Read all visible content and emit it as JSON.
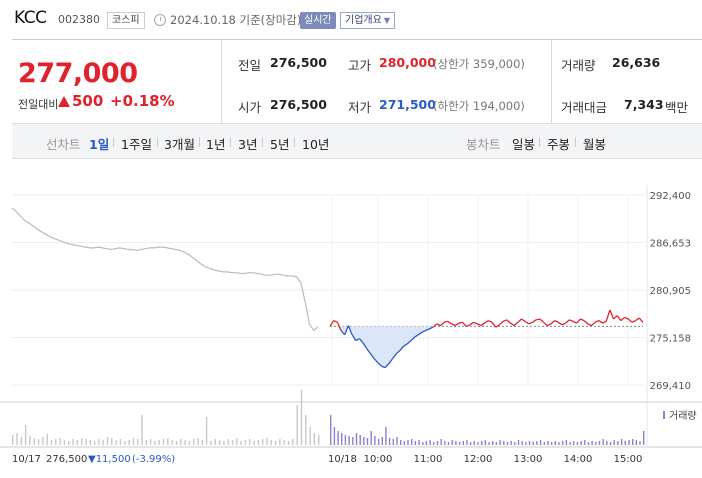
{
  "header": {
    "name": "KCC",
    "code": "002380",
    "market": "코스피",
    "date": "2024.10.18 기준(장마감)",
    "realtime_label": "실시간",
    "overview_label": "기업개요"
  },
  "summary": {
    "price": "277,000",
    "change_label": "전일대비",
    "change": "500",
    "change_pct": "+0.18%",
    "prev_label": "전일",
    "prev": "276,500",
    "open_label": "시가",
    "open": "276,500",
    "high_label": "고가",
    "high": "280,000",
    "upper_limit": "(상한가 359,000)",
    "low_label": "저가",
    "low": "271,500",
    "lower_limit": "(하한가 194,000)",
    "volume_label": "거래량",
    "volume": "26,636",
    "amount_label": "거래대금",
    "amount": "7,343",
    "amount_unit": "백만"
  },
  "tabs": {
    "line_label": "선차트",
    "periods": [
      "1일",
      "1주일",
      "3개월",
      "1년",
      "3년",
      "5년",
      "10년"
    ],
    "active_period": "1일",
    "candle_label": "봉차트",
    "candles": [
      "일봉",
      "주봉",
      "월봉"
    ]
  },
  "colors": {
    "up": "#e0222c",
    "down": "#2a59c9",
    "prev_day": "#bbbbbb",
    "fill": "#dbe7f8"
  },
  "chart_data": {
    "type": "line",
    "yticks": [
      "292,400",
      "286,653",
      "280,905",
      "275,158",
      "269,410"
    ],
    "ylim": [
      269410,
      292400
    ],
    "reference": 276500,
    "x_session_labels": [
      "10/17",
      "10/18"
    ],
    "xticks": [
      "10:00",
      "11:00",
      "12:00",
      "13:00",
      "14:00",
      "15:00"
    ],
    "volume_label": "거래량",
    "prev_day_summary": {
      "close": "276,500",
      "change": "11,500",
      "pct": "(-3.99%)"
    },
    "prev_day_series": [
      290800,
      290400,
      289800,
      289300,
      289000,
      288600,
      288200,
      287900,
      287600,
      287300,
      287100,
      286900,
      286700,
      286500,
      286400,
      286300,
      286200,
      286100,
      286000,
      286000,
      286100,
      286000,
      285900,
      285800,
      285900,
      286000,
      285900,
      285800,
      285800,
      285700,
      285800,
      285900,
      286000,
      286000,
      286100,
      286100,
      286000,
      285900,
      285800,
      285700,
      285500,
      285200,
      284800,
      284400,
      284000,
      283700,
      283500,
      283300,
      283200,
      283100,
      283100,
      283000,
      283000,
      282900,
      282900,
      283000,
      283000,
      282900,
      282800,
      282700,
      282700,
      282800,
      282800,
      282700,
      282600,
      282600,
      282500,
      281800,
      279500,
      276800,
      276000,
      276500
    ],
    "today_series": [
      276500,
      277200,
      277000,
      276000,
      275500,
      276600,
      275500,
      274800,
      275000,
      274500,
      273800,
      273200,
      272600,
      272100,
      271700,
      271500,
      272000,
      272600,
      273200,
      273600,
      274100,
      274400,
      274800,
      275200,
      275500,
      275800,
      276000,
      276200,
      276400,
      276800,
      276600,
      277000,
      277100,
      276800,
      276600,
      276900,
      277000,
      276500,
      276700,
      277000,
      276800,
      276600,
      276900,
      277200,
      277000,
      276400,
      276700,
      277100,
      277300,
      276900,
      276600,
      277000,
      277400,
      277100,
      276800,
      277000,
      277300,
      277400,
      277000,
      276600,
      276800,
      277200,
      277000,
      276700,
      276900,
      277300,
      277100,
      276900,
      277400,
      277200,
      276800,
      276600,
      277000,
      277200,
      276900,
      277100,
      278500,
      277400,
      277800,
      277200,
      277600,
      277400,
      277000,
      277200,
      277500,
      277000
    ],
    "prev_day_volume": [
      10,
      12,
      8,
      20,
      9,
      7,
      6,
      8,
      11,
      5,
      6,
      7,
      5,
      4,
      6,
      5,
      7,
      6,
      5,
      4,
      6,
      5,
      8,
      7,
      5,
      6,
      4,
      5,
      7,
      6,
      30,
      5,
      6,
      4,
      5,
      6,
      7,
      5,
      4,
      6,
      5,
      4,
      6,
      7,
      5,
      28,
      4,
      6,
      5,
      4,
      6,
      5,
      7,
      4,
      5,
      6,
      4,
      5,
      6,
      7,
      5,
      4,
      6,
      5,
      4,
      6,
      40,
      55,
      30,
      18,
      12,
      10
    ],
    "today_volume": [
      30,
      18,
      14,
      12,
      10,
      9,
      8,
      12,
      10,
      8,
      7,
      14,
      9,
      6,
      8,
      18,
      7,
      6,
      8,
      5,
      4,
      5,
      6,
      4,
      5,
      3,
      4,
      5,
      3,
      4,
      6,
      4,
      3,
      5,
      4,
      3,
      4,
      5,
      3,
      4,
      3,
      4,
      5,
      3,
      4,
      3,
      5,
      4,
      3,
      4,
      3,
      5,
      4,
      3,
      4,
      3,
      4,
      5,
      3,
      4,
      3,
      4,
      3,
      4,
      5,
      3,
      4,
      3,
      4,
      5,
      3,
      4,
      3,
      4,
      6,
      4,
      3,
      5,
      4,
      6,
      4,
      5,
      6,
      5,
      4,
      14
    ]
  }
}
